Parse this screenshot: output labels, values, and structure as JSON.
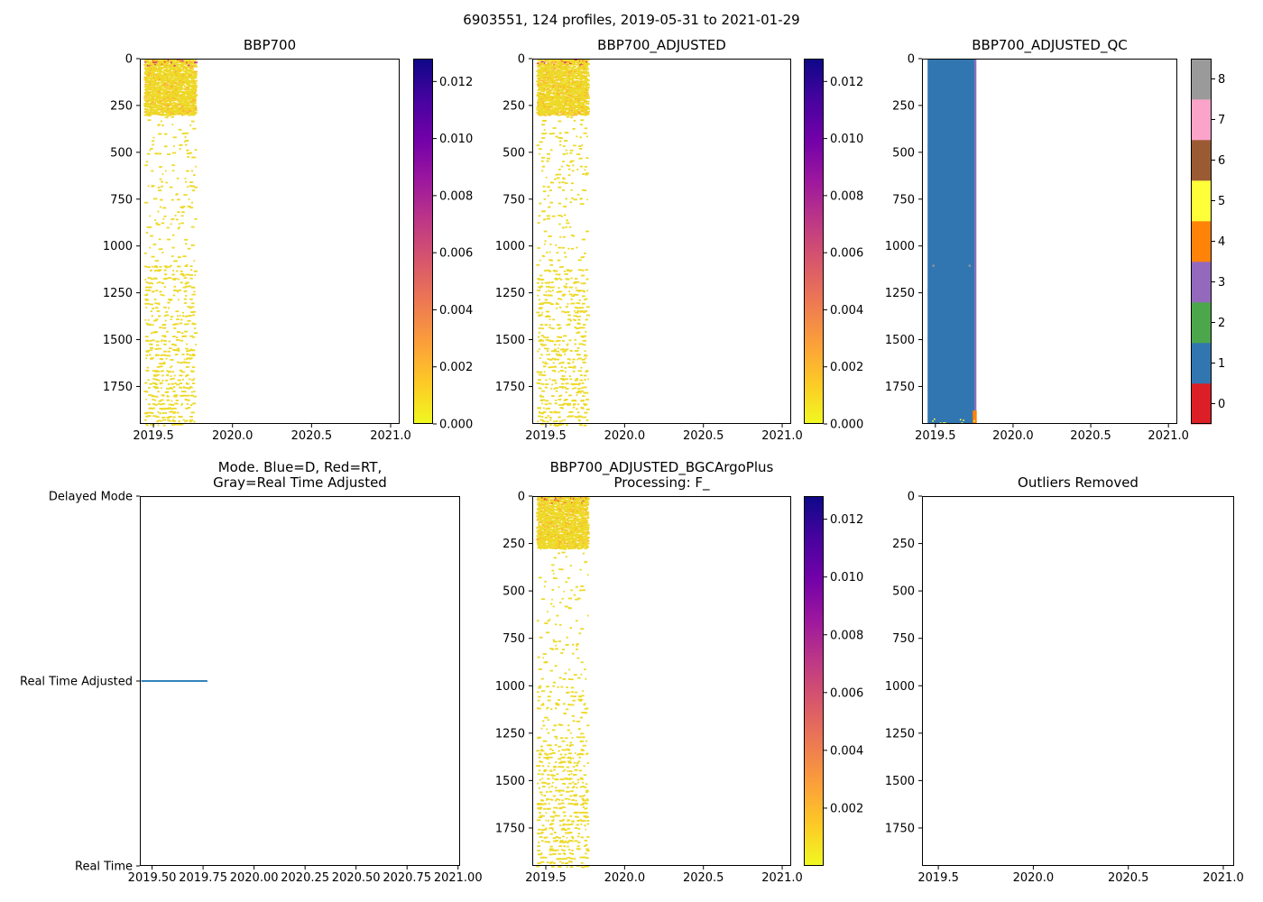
{
  "figure": {
    "title": "6903551, 124 profiles, 2019-05-31 to 2021-01-29",
    "platform_id": "6903551",
    "n_profiles": 124,
    "date_range": "2019-05-31 to 2021-01-29"
  },
  "palette": {
    "background": "#ffffff",
    "axis": "#000000",
    "speckle_yellow": "#edd927",
    "speckle_orange": "#fdb32f",
    "speckle_hot": [
      "#e04a33",
      "#cf3a83",
      "#f07220"
    ],
    "mode_point_blue": "#1f77b4",
    "plasma_r_stops": [
      "#f0f921",
      "#fdca26",
      "#fb9f3a",
      "#ed7953",
      "#d8576b",
      "#bd3786",
      "#9c179e",
      "#7201a8",
      "#46039f",
      "#0d0887"
    ],
    "qc_colors": [
      "#dc1f26",
      "#3276b1",
      "#4ca64c",
      "#9468bd",
      "#ff8209",
      "#feff39",
      "#9a5b34",
      "#fba3c9",
      "#9a9a9a"
    ]
  },
  "chart_data": [
    {
      "id": "bbp700",
      "type": "heatmap",
      "title": "BBP700",
      "xlim": [
        2019.414,
        2021.057
      ],
      "x_ticks": [
        "2019.5",
        "2020.0",
        "2020.5",
        "2021.0"
      ],
      "ylim": [
        1950,
        0
      ],
      "y_ticks": [
        "0",
        "250",
        "500",
        "750",
        "1000",
        "1250",
        "1500",
        "1750"
      ],
      "colorbar": {
        "kind": "continuous",
        "cmap": "plasma_r",
        "vmin": 0.0,
        "vmax": 0.0128,
        "ticks": [
          "0.000",
          "0.002",
          "0.004",
          "0.006",
          "0.008",
          "0.010",
          "0.012"
        ]
      },
      "data": {
        "seed": 11,
        "time_start": 2019.45,
        "time_end": 2019.768,
        "n_profiles": 124,
        "depth_max": 1950,
        "typical_value": 0.0004,
        "bands": [
          {
            "depth": [
              0,
              300
            ],
            "density": 0.8
          },
          {
            "depth": [
              300,
              1100
            ],
            "density": 0.06
          },
          {
            "depth": [
              1100,
              1550
            ],
            "density": 0.16
          },
          {
            "depth": [
              1550,
              1950
            ],
            "density": 0.2
          }
        ]
      }
    },
    {
      "id": "bbp700_adjusted",
      "type": "heatmap",
      "title": "BBP700_ADJUSTED",
      "xlim": [
        2019.414,
        2021.057
      ],
      "x_ticks": [
        "2019.5",
        "2020.0",
        "2020.5",
        "2021.0"
      ],
      "ylim": [
        1950,
        0
      ],
      "y_ticks": [
        "0",
        "250",
        "500",
        "750",
        "1000",
        "1250",
        "1500",
        "1750"
      ],
      "colorbar": {
        "kind": "continuous",
        "cmap": "plasma_r",
        "vmin": 0.0,
        "vmax": 0.0128,
        "ticks": [
          "0.000",
          "0.002",
          "0.004",
          "0.006",
          "0.008",
          "0.010",
          "0.012"
        ]
      },
      "data": {
        "seed": 23,
        "time_start": 2019.45,
        "time_end": 2019.768,
        "n_profiles": 124,
        "depth_max": 1950,
        "typical_value": 0.0004,
        "bands": [
          {
            "depth": [
              0,
              300
            ],
            "density": 0.78
          },
          {
            "depth": [
              300,
              1100
            ],
            "density": 0.06
          },
          {
            "depth": [
              1100,
              1550
            ],
            "density": 0.15
          },
          {
            "depth": [
              1550,
              1950
            ],
            "density": 0.2
          }
        ]
      }
    },
    {
      "id": "bbp700_adjusted_qc",
      "type": "qc",
      "title": "BBP700_ADJUSTED_QC",
      "xlim": [
        2019.414,
        2021.057
      ],
      "x_ticks": [
        "2019.5",
        "2020.0",
        "2020.5",
        "2021.0"
      ],
      "ylim": [
        1950,
        0
      ],
      "y_ticks": [
        "0",
        "250",
        "500",
        "750",
        "1000",
        "1250",
        "1500",
        "1750"
      ],
      "colorbar": {
        "kind": "discrete",
        "vmin": 0,
        "vmax": 8,
        "ticks": [
          "0",
          "1",
          "2",
          "3",
          "4",
          "5",
          "6",
          "7",
          "8"
        ]
      },
      "data": {
        "seed": 31,
        "blocks": [
          {
            "t": [
              2019.45,
              2019.753
            ],
            "depth": [
              0,
              1950
            ],
            "qc": 1
          },
          {
            "t": [
              2019.753,
              2019.764
            ],
            "depth": [
              0,
              1950
            ],
            "qc": 3
          },
          {
            "t": [
              2019.74,
              2019.766
            ],
            "depth": [
              1878,
              1950
            ],
            "qc": 4
          }
        ],
        "speckle_row": {
          "t": [
            2019.45,
            2019.753
          ],
          "depth": [
            1918,
            1950
          ],
          "qc": 5,
          "density": 0.45
        },
        "spots": [
          {
            "t": 2019.487,
            "depth": 1105,
            "qc": 8
          },
          {
            "t": 2019.72,
            "depth": 1105,
            "qc": 8
          }
        ]
      }
    },
    {
      "id": "mode",
      "type": "categorical",
      "title_line1": "Mode. Blue=D, Red=RT,",
      "title_line2": "Gray=Real Time Adjusted",
      "xlim": [
        2019.44,
        2021.01
      ],
      "x_ticks": [
        "2019.50",
        "2019.75",
        "2020.00",
        "2020.25",
        "2020.50",
        "2020.75",
        "2021.00"
      ],
      "categories": [
        "Delayed Mode",
        "Real Time Adjusted",
        "Real Time"
      ],
      "series": [
        {
          "category": "Real Time Adjusted",
          "t_start": 2019.45,
          "t_end": 2019.768,
          "n_points": 62,
          "color_key": "mode_point_blue"
        }
      ]
    },
    {
      "id": "bbp700_adjusted_bgcargoplus",
      "type": "heatmap",
      "title_line1": "BBP700_ADJUSTED_BGCArgoPlus",
      "title_line2": "Processing: F_",
      "xlim": [
        2019.414,
        2021.057
      ],
      "x_ticks": [
        "2019.5",
        "2020.0",
        "2020.5",
        "2021.0"
      ],
      "ylim": [
        1950,
        0
      ],
      "y_ticks": [
        "0",
        "250",
        "500",
        "750",
        "1000",
        "1250",
        "1500",
        "1750"
      ],
      "colorbar": {
        "kind": "continuous",
        "cmap": "plasma_r",
        "vmin": 0.0,
        "vmax": 0.0128,
        "ticks": [
          "0.002",
          "0.004",
          "0.006",
          "0.008",
          "0.010",
          "0.012"
        ]
      },
      "data": {
        "seed": 43,
        "time_start": 2019.45,
        "time_end": 2019.768,
        "n_profiles": 124,
        "depth_max": 1950,
        "typical_value": 0.0004,
        "bands": [
          {
            "depth": [
              0,
              270
            ],
            "density": 0.82
          },
          {
            "depth": [
              270,
              1000
            ],
            "density": 0.05
          },
          {
            "depth": [
              1000,
              1350
            ],
            "density": 0.1
          },
          {
            "depth": [
              1350,
              1950
            ],
            "density": 0.22
          }
        ]
      }
    },
    {
      "id": "outliers_removed",
      "type": "empty",
      "title": "Outliers Removed",
      "xlim": [
        2019.414,
        2021.057
      ],
      "x_ticks": [
        "2019.5",
        "2020.0",
        "2020.5",
        "2021.0"
      ],
      "ylim": [
        1950,
        0
      ],
      "y_ticks": [
        "0",
        "250",
        "500",
        "750",
        "1000",
        "1250",
        "1500",
        "1750"
      ]
    }
  ]
}
